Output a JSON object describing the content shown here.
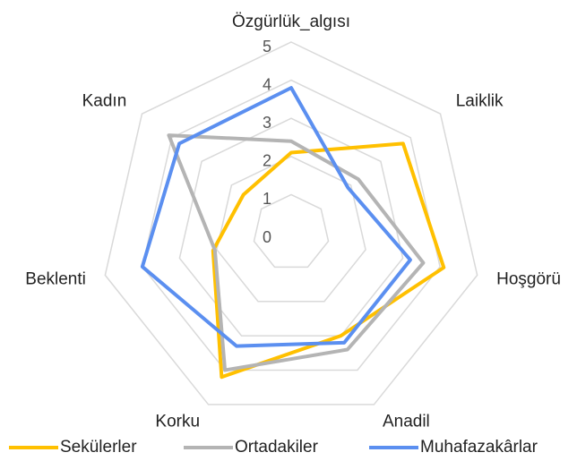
{
  "chart_data": {
    "type": "radar",
    "categories": [
      "Özgürlük_algısı",
      "Laiklik",
      "Hoşgörü",
      "Anadil",
      "Korku",
      "Beklenti",
      "Kadın"
    ],
    "series": [
      {
        "name": "Sekülerler",
        "color": "#ffc000",
        "values": [
          2.1,
          3.75,
          4.1,
          3.0,
          4.2,
          2.1,
          1.6
        ]
      },
      {
        "name": "Ortadakiler",
        "color": "#b4b4b4",
        "values": [
          2.4,
          2.25,
          3.55,
          3.4,
          4.0,
          2.05,
          4.1
        ]
      },
      {
        "name": "Muhafazakârlar",
        "color": "#5b8ff0",
        "values": [
          3.8,
          1.9,
          3.2,
          3.2,
          3.3,
          4.0,
          3.75
        ]
      }
    ],
    "ylim": [
      0,
      5
    ],
    "yticks": [
      0,
      1,
      2,
      3,
      4,
      5
    ],
    "grid": true,
    "legend": "bottom"
  }
}
